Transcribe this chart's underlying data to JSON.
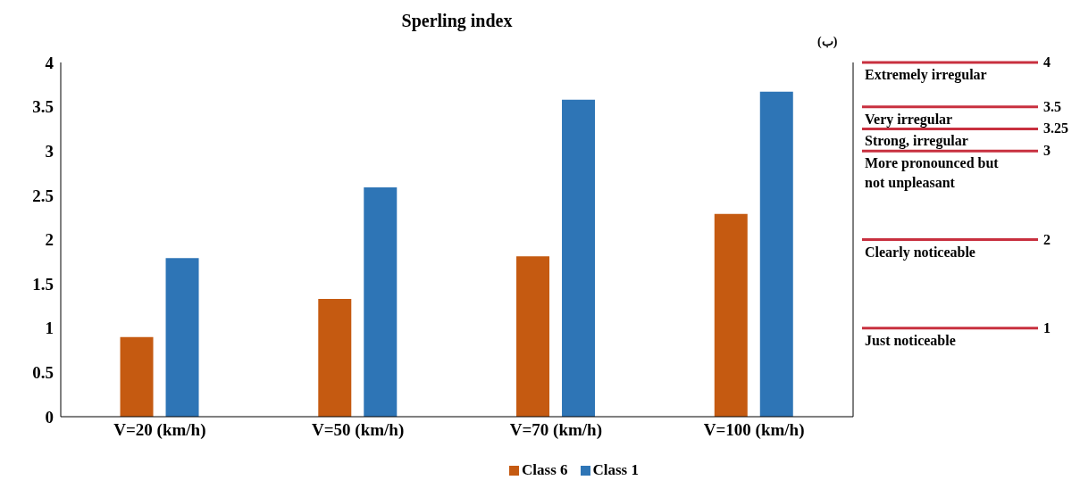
{
  "chart_data": {
    "type": "bar",
    "title": "Sperling index",
    "categories": [
      "V=20 (km/h)",
      "V=50 (km/h)",
      "V=70 (km/h)",
      "V=100 (km/h)"
    ],
    "series": [
      {
        "name": "Class 6",
        "color": "#c55a11",
        "values": [
          0.9,
          1.33,
          1.81,
          2.29
        ]
      },
      {
        "name": "Class 1",
        "color": "#2e75b6",
        "values": [
          1.79,
          2.59,
          3.58,
          3.67
        ]
      }
    ],
    "ylim": [
      0,
      4
    ],
    "yticks": [
      0,
      0.5,
      1,
      1.5,
      2,
      2.5,
      3,
      3.5,
      4
    ],
    "grid": false,
    "legend": "bottom",
    "ref_lines": [
      {
        "axis": "y",
        "value": 4,
        "label": "4",
        "color": "#c8303f"
      },
      {
        "axis": "y",
        "value": 3.5,
        "label": "3.5",
        "color": "#c8303f"
      },
      {
        "axis": "y",
        "value": 3.25,
        "label": "3.25",
        "color": "#c8303f"
      },
      {
        "axis": "y",
        "value": 3,
        "label": "3",
        "color": "#c8303f"
      },
      {
        "axis": "y",
        "value": 2,
        "label": "2",
        "color": "#c8303f"
      },
      {
        "axis": "y",
        "value": 1,
        "label": "1",
        "color": "#c8303f"
      }
    ],
    "annotations": [
      "(ب)",
      {
        "text": "Extremely irregular",
        "y": 4
      },
      {
        "text": "Very irregular",
        "y": 3.5
      },
      {
        "text": "Strong, irregular",
        "y": 3.25
      },
      {
        "text": "More pronounced but not unpleasant",
        "y": 3
      },
      {
        "text": "Clearly noticeable",
        "y": 2
      },
      {
        "text": "Just noticeable",
        "y": 1
      }
    ]
  }
}
